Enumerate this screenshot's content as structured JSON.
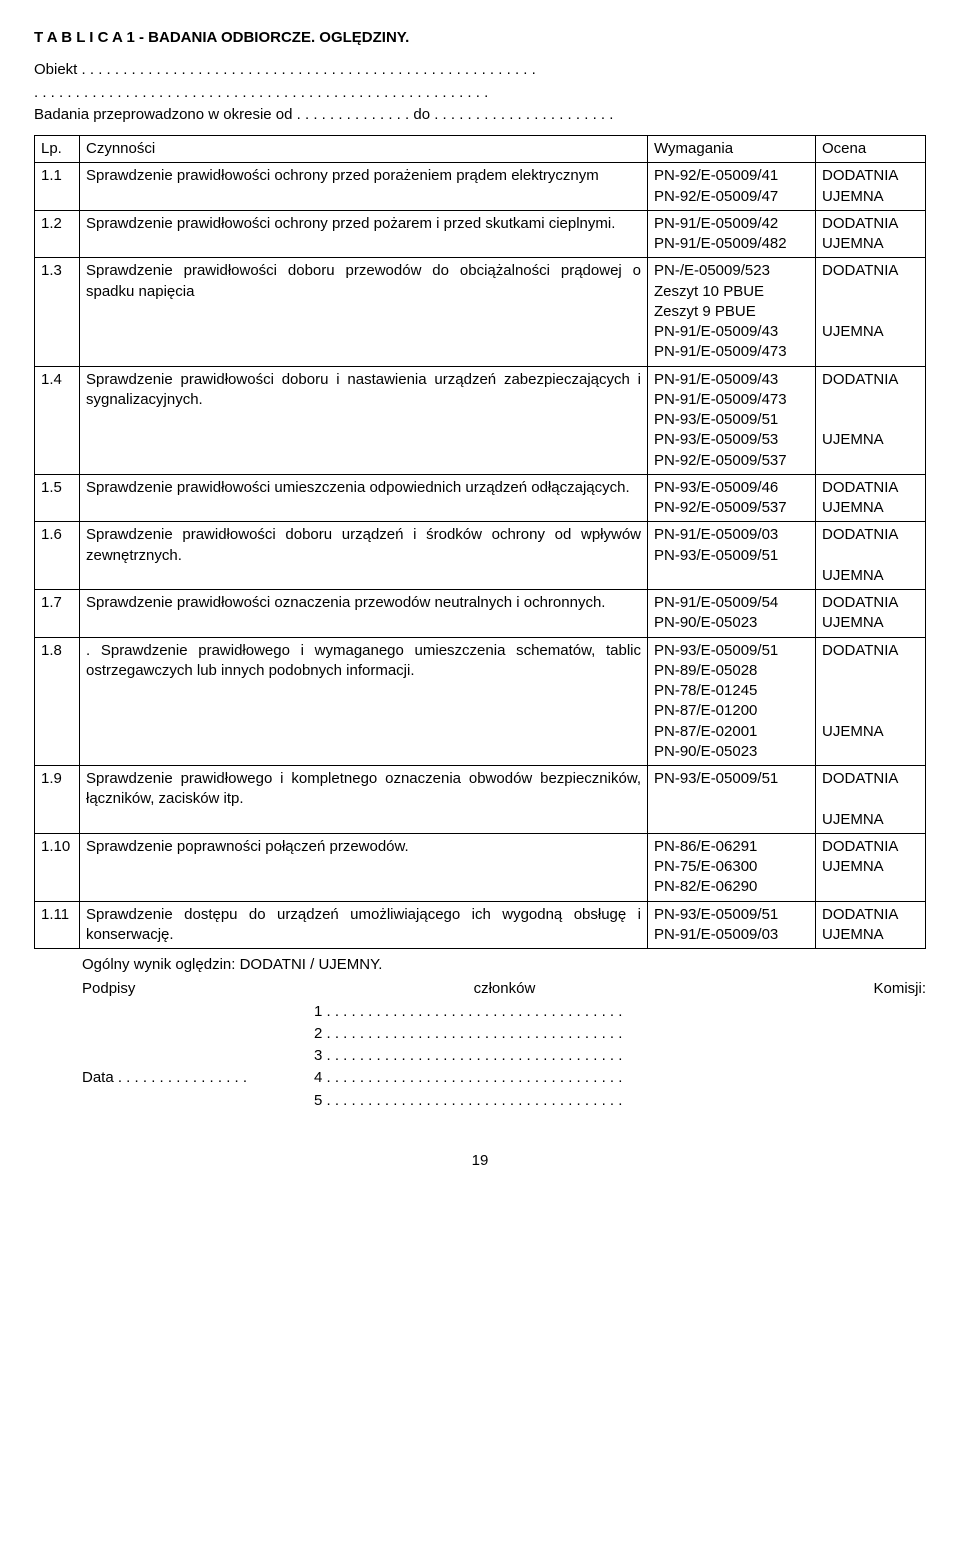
{
  "header": {
    "title": "T A B L I C A  1 - BADANIA ODBIORCZE. OGLĘDZINY.",
    "obiekt": "Obiekt . . . . . . . . . . . . . . . . . . . . . . . . . . . . . . . . . . . . . . . . . . . . . . . . . . . . . . .",
    "dots2": ". . . . . . . . . . . . . . . . . . . . . . . . . . . . . . . . . . . . . . . . . . . . . . . . . . . . . . .",
    "badania": "Badania przeprowadzono w okresie od . . . . . . . . . . . . . . do . . . . . . . . . . . . . . . . . . . . . ."
  },
  "table": {
    "head": {
      "lp": "Lp.",
      "cz": "Czynności",
      "wy": "Wymagania",
      "oc": "Ocena"
    },
    "rows": [
      {
        "lp": "1.1",
        "cz": "Sprawdzenie prawidłowości ochrony przed porażeniem prądem elektrycznym",
        "wy": "PN-92/E-05009/41\nPN-92/E-05009/47",
        "oc": "DODATNIA\nUJEMNA"
      },
      {
        "lp": "1.2",
        "cz": "Sprawdzenie prawidłowości ochrony przed pożarem i przed skutkami cieplnymi.",
        "wy": "PN-91/E-05009/42\nPN-91/E-05009/482",
        "oc": "DODATNIA\nUJEMNA"
      },
      {
        "lp": "1.3",
        "cz": "Sprawdzenie prawidłowości doboru przewodów do obciążalności prądowej o spadku napięcia",
        "wy": "PN-/E-05009/523\nZeszyt 10 PBUE\nZeszyt 9 PBUE\nPN-91/E-05009/43\nPN-91/E-05009/473",
        "oc": "DODATNIA\n\n\nUJEMNA"
      },
      {
        "lp": "1.4",
        "cz": "Sprawdzenie prawidłowości doboru i nastawienia urządzeń zabezpieczających i sygnalizacyjnych.",
        "wy": "PN-91/E-05009/43\nPN-91/E-05009/473\nPN-93/E-05009/51\nPN-93/E-05009/53\nPN-92/E-05009/537",
        "oc": "DODATNIA\n\n\nUJEMNA"
      },
      {
        "lp": "1.5",
        "cz": "Sprawdzenie prawidłowości umieszczenia odpowiednich urządzeń odłączających.",
        "wy": "PN-93/E-05009/46\nPN-92/E-05009/537",
        "oc": "DODATNIA\nUJEMNA"
      },
      {
        "lp": "1.6",
        "cz": "Sprawdzenie prawidłowości doboru urządzeń i środków ochrony od wpływów zewnętrznych.",
        "wy": "PN-91/E-05009/03\nPN-93/E-05009/51",
        "oc": "DODATNIA\n\nUJEMNA"
      },
      {
        "lp": "1.7",
        "cz": "Sprawdzenie prawidłowości oznaczenia przewodów neutralnych i ochronnych.",
        "wy": "PN-91/E-05009/54\nPN-90/E-05023",
        "oc": "DODATNIA\nUJEMNA"
      },
      {
        "lp": "1.8",
        "cz": ". Sprawdzenie prawidłowego i wymaganego umieszczenia schematów, tablic ostrzegawczych lub innych podobnych informacji.",
        "wy": "PN-93/E-05009/51\nPN-89/E-05028\nPN-78/E-01245\nPN-87/E-01200\nPN-87/E-02001\nPN-90/E-05023",
        "oc": "DODATNIA\n\n\n\nUJEMNA"
      },
      {
        "lp": "1.9",
        "cz": "Sprawdzenie prawidłowego i kompletnego oznaczenia obwodów bezpieczników, łączników, zacisków itp.",
        "wy": "PN-93/E-05009/51",
        "oc": "DODATNIA\n\nUJEMNA"
      },
      {
        "lp": "1.10",
        "cz": "Sprawdzenie poprawności połączeń przewodów.",
        "wy": "PN-86/E-06291\nPN-75/E-06300\nPN-82/E-06290",
        "oc": "DODATNIA\nUJEMNA"
      },
      {
        "lp": "1.11",
        "cz": "Sprawdzenie dostępu do urządzeń umożliwiającego ich wygodną obsługę i konserwację.",
        "wy": "PN-93/E-05009/51\nPN-91/E-05009/03",
        "oc": "DODATNIA\nUJEMNA"
      }
    ]
  },
  "footer": {
    "summary": "Ogólny wynik oględzin: DODATNI / UJEMNY.",
    "podpisy": "Podpisy",
    "czlonkow": "członków",
    "komisji": "Komisji:",
    "l1": "1 . . . . . . . . . . . . . . . . . . . . . . . . . . . . . . . . . . . .",
    "l2": "2 . . . . . . . . . . . . . . . . . . . . . . . . . . . . . . . . . . . .",
    "l3": "3 . . . . . . . . . . . . . . . . . . . . . . . . . . . . . . . . . . . .",
    "data": "Data  . . . . . . . . . . . . . . . .",
    "l4": "4 . . . . . . . . . . . . . . . . . . . . . . . . . . . . . . . . . . . .",
    "l5": "5 . . . . . . . . . . . . . . . . . . . . . . . . . . . . . . . . . . . .",
    "page": "19"
  }
}
